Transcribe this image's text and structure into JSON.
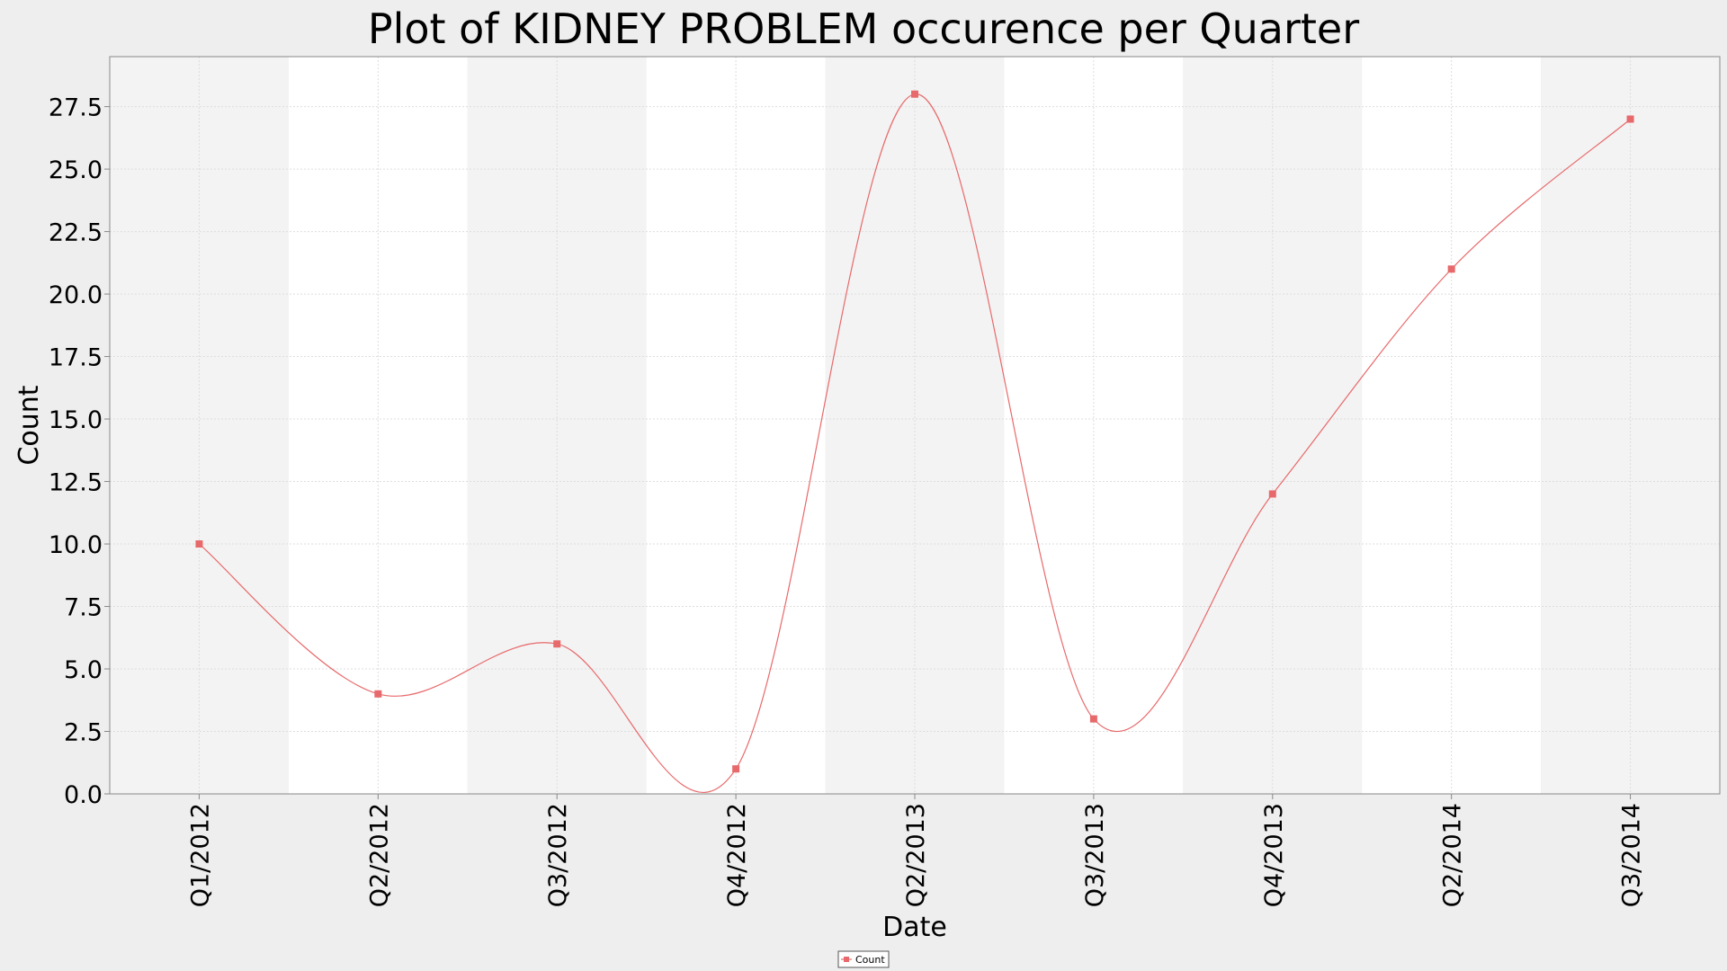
{
  "chart_data": {
    "type": "line",
    "title": "Plot of KIDNEY PROBLEM occurence per Quarter",
    "xlabel": "Date",
    "ylabel": "Count",
    "categories": [
      "Q1/2012",
      "Q2/2012",
      "Q3/2012",
      "Q4/2012",
      "Q2/2013",
      "Q3/2013",
      "Q4/2013",
      "Q2/2014",
      "Q3/2014"
    ],
    "series": [
      {
        "name": "Count",
        "values": [
          10,
          4,
          6,
          1,
          28,
          3,
          12,
          21,
          27
        ]
      }
    ],
    "yticks": [
      "0.0",
      "2.5",
      "5.0",
      "7.5",
      "10.0",
      "12.5",
      "15.0",
      "17.5",
      "20.0",
      "22.5",
      "25.0",
      "27.5"
    ],
    "ylim": [
      0,
      29.5
    ],
    "smoothed": true,
    "grid": true,
    "legend_position": "bottom-center",
    "colors": {
      "series": "#e8696b",
      "band_shaded": "#f3f3f3",
      "band_plain": "#ffffff",
      "background": "#eeeeee",
      "grid": "#dddddd"
    }
  }
}
